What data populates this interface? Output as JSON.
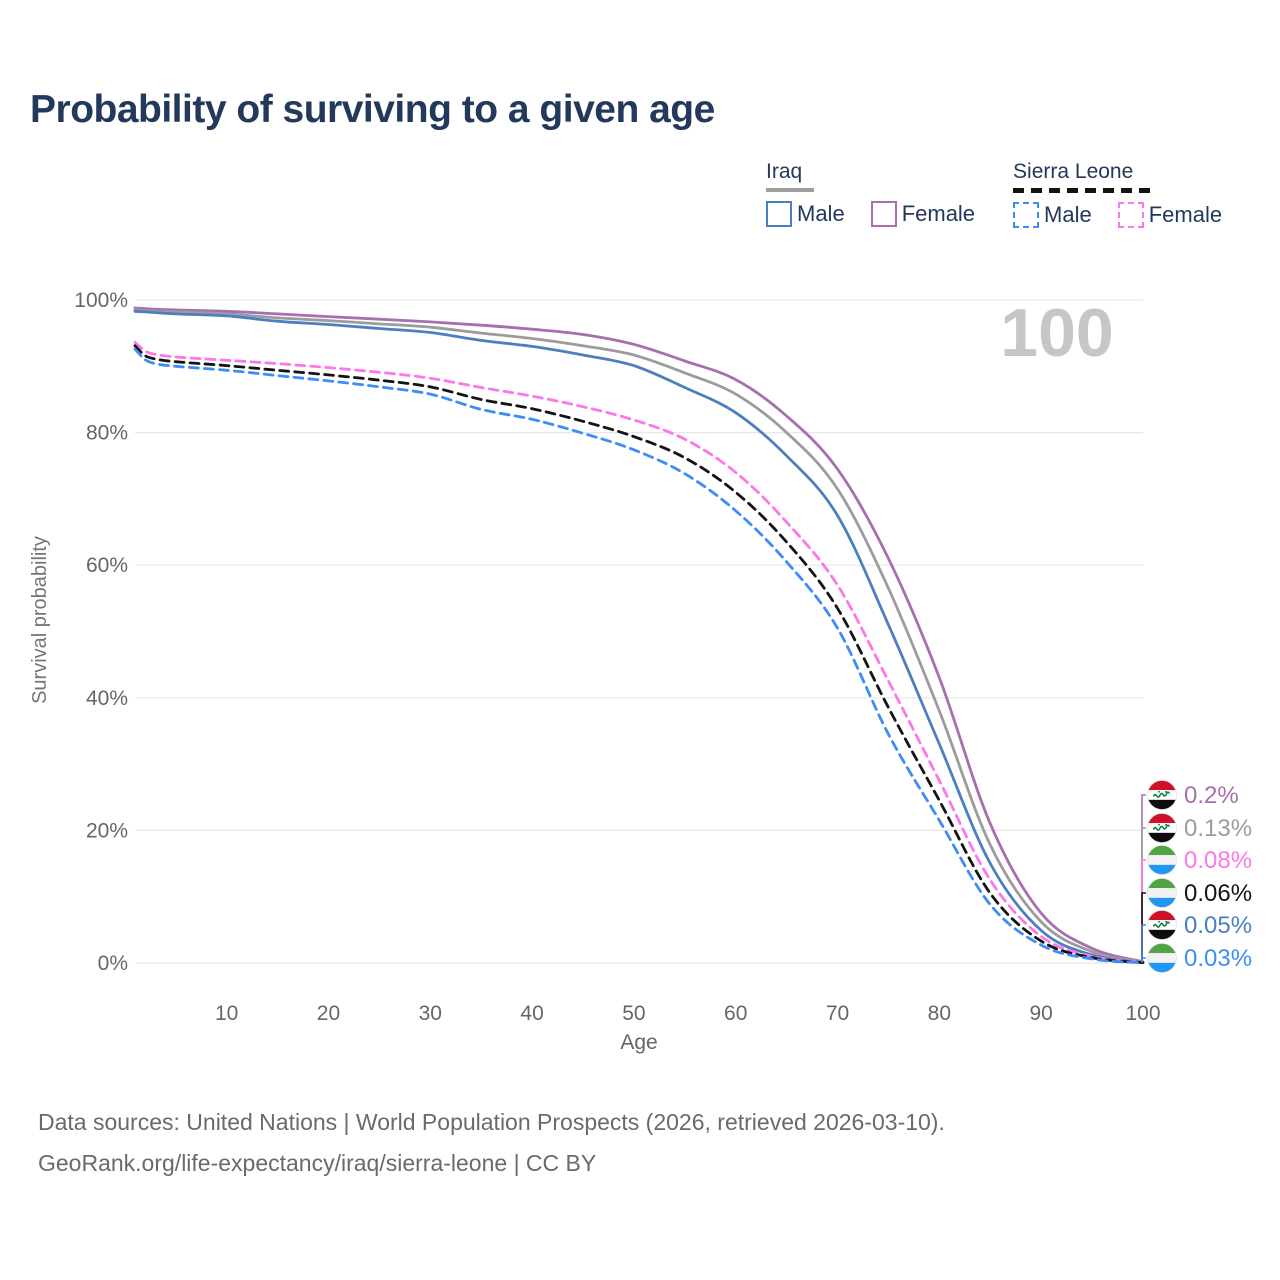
{
  "title": "Probability of surviving to a given age",
  "watermark": "100",
  "legend": {
    "groups": [
      {
        "name": "Iraq",
        "underline_style": "solid",
        "underline_color": "#9e9e9e",
        "items": [
          {
            "label": "Male",
            "color": "#4b7fbe",
            "dash": "solid"
          },
          {
            "label": "Female",
            "color": "#a76fae",
            "dash": "solid"
          }
        ]
      },
      {
        "name": "Sierra Leone",
        "underline_style": "dashed",
        "underline_color": "#141414",
        "items": [
          {
            "label": "Male",
            "color": "#3d8df6",
            "dash": "dashed"
          },
          {
            "label": "Female",
            "color": "#fc77e9",
            "dash": "dashed"
          }
        ]
      }
    ]
  },
  "chart_data": {
    "type": "line",
    "title": "Probability of surviving to a given age",
    "xlabel": "Age",
    "ylabel": "Survival probability",
    "xlim": [
      1,
      100
    ],
    "ylim": [
      0,
      100
    ],
    "grid": "horizontal",
    "legend_position": "top-right",
    "x_ticks": [
      10,
      20,
      30,
      40,
      50,
      60,
      70,
      80,
      90,
      100
    ],
    "y_tick_labels": [
      "0%",
      "20%",
      "40%",
      "60%",
      "80%",
      "100%"
    ],
    "ages": [
      1,
      2,
      3,
      5,
      10,
      15,
      20,
      25,
      30,
      35,
      40,
      45,
      50,
      55,
      60,
      65,
      70,
      75,
      80,
      85,
      90,
      95,
      100
    ],
    "series": [
      {
        "name": "Iraq Female",
        "country": "iraq",
        "sex": "female",
        "color": "#a76fae",
        "dash": "solid",
        "end_label": "0.2%",
        "values": [
          98.8,
          98.7,
          98.6,
          98.5,
          98.3,
          97.9,
          97.5,
          97.1,
          96.7,
          96.2,
          95.6,
          94.8,
          93.3,
          90.8,
          88.0,
          82.5,
          74.5,
          61.0,
          43.0,
          21.0,
          7.5,
          2.2,
          0.2
        ]
      },
      {
        "name": "Iraq Both sexes",
        "country": "iraq",
        "sex": "both",
        "color": "#9c9c9c",
        "dash": "solid",
        "end_label": "0.13%",
        "values": [
          98.5,
          98.4,
          98.3,
          98.2,
          97.9,
          97.3,
          96.9,
          96.4,
          95.9,
          95.0,
          94.2,
          93.1,
          91.7,
          89.0,
          85.8,
          80.0,
          71.5,
          56.5,
          38.0,
          17.8,
          6.2,
          1.7,
          0.13
        ]
      },
      {
        "name": "Iraq Male",
        "country": "iraq",
        "sex": "male",
        "color": "#4b7fbe",
        "dash": "solid",
        "end_label": "0.05%",
        "values": [
          98.3,
          98.2,
          98.1,
          97.9,
          97.6,
          96.8,
          96.3,
          95.7,
          95.1,
          93.9,
          93.0,
          91.7,
          90.1,
          86.8,
          83.0,
          76.5,
          67.5,
          51.0,
          33.0,
          15.0,
          4.9,
          1.2,
          0.05
        ]
      },
      {
        "name": "Sierra Leone Female",
        "country": "sierra-leone",
        "sex": "female",
        "color": "#fc77e9",
        "dash": "dashed",
        "end_label": "0.08%",
        "values": [
          93.6,
          92.3,
          91.8,
          91.4,
          90.9,
          90.4,
          89.8,
          89.1,
          88.2,
          86.8,
          85.5,
          83.9,
          81.9,
          79.0,
          74.0,
          66.5,
          57.0,
          42.5,
          27.5,
          12.5,
          4.0,
          1.0,
          0.08
        ]
      },
      {
        "name": "Sierra Leone Both sexes",
        "country": "sierra-leone",
        "sex": "both",
        "color": "#141414",
        "dash": "dashed",
        "end_label": "0.06%",
        "values": [
          93.1,
          91.6,
          91.1,
          90.7,
          90.1,
          89.4,
          88.7,
          87.9,
          86.9,
          85.0,
          83.6,
          81.7,
          79.4,
          76.2,
          71.0,
          63.5,
          53.5,
          38.5,
          24.5,
          10.5,
          3.3,
          0.8,
          0.06
        ]
      },
      {
        "name": "Sierra Leone Male",
        "country": "sierra-leone",
        "sex": "male",
        "color": "#3d8df6",
        "dash": "dashed",
        "end_label": "0.03%",
        "values": [
          92.6,
          91.0,
          90.4,
          90.0,
          89.4,
          88.6,
          87.8,
          86.9,
          85.8,
          83.5,
          82.0,
          79.9,
          77.4,
          73.8,
          68.2,
          60.5,
          50.5,
          34.5,
          21.5,
          8.8,
          2.7,
          0.6,
          0.03
        ]
      }
    ]
  },
  "end_labels": [
    {
      "text": "0.2%",
      "flag": "iraq",
      "color": "#a76fae"
    },
    {
      "text": "0.13%",
      "flag": "iraq",
      "color": "#9c9c9c"
    },
    {
      "text": "0.08%",
      "flag": "sierra-leone",
      "color": "#fc77e9"
    },
    {
      "text": "0.06%",
      "flag": "sierra-leone",
      "color": "#141414"
    },
    {
      "text": "0.05%",
      "flag": "iraq",
      "color": "#4b7fbe"
    },
    {
      "text": "0.03%",
      "flag": "sierra-leone",
      "color": "#3d8df6"
    }
  ],
  "footer": {
    "source_line": "Data sources: United Nations | World Population Prospects (2026, retrieved 2026-03-10).",
    "attribution_line": "GeoRank.org/life-expectancy/iraq/sierra-leone | CC BY"
  }
}
